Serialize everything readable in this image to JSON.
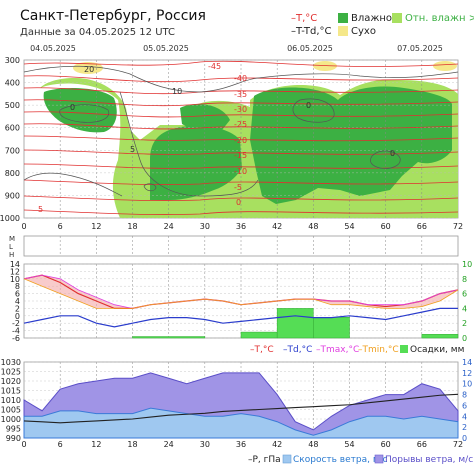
{
  "header": {
    "title": "Санкт-Петербург, Россия",
    "subtitle": "Данные за 04.05.2025 12 UTC"
  },
  "legend_top": {
    "t": "–T,°C",
    "ttd": "–T-Td,°C",
    "vlazhno": "Влажно",
    "otn": "Отн. влажн >70%",
    "sukho": "Сухо"
  },
  "colors": {
    "temperature": "#e03030",
    "dew_point": "#2a3ccc",
    "tmax": "#e040e0",
    "tmin": "#f0a020",
    "humid_dark": "#3cb043",
    "humid_light": "#a8e060",
    "dry": "#f5e88a",
    "precip": "#55dd55",
    "pressure": "#222222",
    "wind": "#9fc8f0",
    "gust": "#a094e6"
  },
  "dates": [
    "04.05.2025",
    "05.05.2025",
    "06.05.2025",
    "07.05.2025"
  ],
  "hour_ticks": [
    "0",
    "6",
    "12",
    "18",
    "24",
    "30",
    "36",
    "42",
    "48",
    "54",
    "60",
    "66",
    "72"
  ],
  "cloud_labels": [
    "M",
    "L",
    "H"
  ],
  "panel_temp": {
    "legend": {
      "t": "–T,°C",
      "td": "–Td,°C",
      "tmax": "–Tmax,°C",
      "tmin": "–Tmin,°C",
      "precip": "Осадки, мм"
    }
  },
  "panel_wind": {
    "legend": {
      "p": "–P, гПа",
      "wind": "Скорость ветра, м/с",
      "gust": "Порывы ветра, м/с"
    }
  },
  "chart_data": [
    {
      "type": "heatmap",
      "ylabel": "",
      "ylim": [
        1000,
        300
      ],
      "y_ticks": [
        300,
        400,
        500,
        600,
        700,
        800,
        900,
        1000
      ],
      "x_ticks": [
        0,
        6,
        12,
        18,
        24,
        30,
        36,
        42,
        48,
        54,
        60,
        66,
        72
      ],
      "temperature_isotherm_labels": [
        "-45",
        "-40",
        "-35",
        "-30",
        "-25",
        "-20",
        "-15",
        "-10",
        "-5",
        "0",
        "5"
      ],
      "dewpoint_deficit_labels": [
        "20",
        "10",
        "0",
        "5"
      ],
      "regions": [
        "Влажно",
        "Отн. влажн >70%",
        "Сухо"
      ]
    },
    {
      "type": "line",
      "x": [
        0,
        3,
        6,
        9,
        12,
        15,
        18,
        21,
        24,
        27,
        30,
        33,
        36,
        39,
        42,
        45,
        48,
        51,
        54,
        57,
        60,
        63,
        66,
        69,
        72
      ],
      "ylim": [
        -6,
        14
      ],
      "y_ticks": [
        "-6",
        "-4",
        "-2",
        "0",
        "2",
        "4",
        "6",
        "8",
        "10",
        "12",
        "14"
      ],
      "y2lim": [
        0,
        10
      ],
      "y2_ticks": [
        "0",
        "2",
        "4",
        "6",
        "8",
        "10"
      ],
      "series": [
        {
          "name": "T,°C",
          "values": [
            10,
            11,
            9,
            6,
            4,
            2,
            2,
            3,
            3.5,
            4,
            4.5,
            4,
            3,
            3.5,
            4,
            4.5,
            4.5,
            4,
            4,
            3,
            2.5,
            3,
            4,
            6,
            7
          ]
        },
        {
          "name": "Td,°C",
          "values": [
            -2,
            -1,
            0,
            0,
            -2,
            -3,
            -2,
            -1,
            -0.5,
            -0.5,
            -1,
            -2,
            -1.5,
            -1,
            -0.5,
            0,
            -0.5,
            -0.5,
            0,
            -0.5,
            -1,
            0,
            1,
            2,
            2
          ]
        },
        {
          "name": "Tmax,°C",
          "values": [
            10,
            11,
            10,
            7,
            5,
            3,
            2,
            3,
            3.5,
            4,
            4.5,
            4,
            3,
            3.5,
            4,
            4.5,
            4.5,
            4,
            4,
            3,
            3,
            3,
            4,
            6,
            7
          ]
        },
        {
          "name": "Tmin,°C",
          "values": [
            10,
            8,
            6,
            4,
            2,
            2,
            2,
            3,
            3.5,
            4,
            4.5,
            4,
            3,
            3.5,
            4,
            4.5,
            4.5,
            3,
            3,
            2.5,
            2,
            2,
            2.5,
            4,
            7
          ]
        }
      ],
      "precip_mm": [
        {
          "x0": 18,
          "x1": 30,
          "value": 0.2
        },
        {
          "x0": 36,
          "x1": 42,
          "value": 0.8
        },
        {
          "x0": 42,
          "x1": 48,
          "value": 4.0
        },
        {
          "x0": 48,
          "x1": 54,
          "value": 2.8
        },
        {
          "x0": 66,
          "x1": 72,
          "value": 0.5
        }
      ]
    },
    {
      "type": "area",
      "x": [
        0,
        3,
        6,
        9,
        12,
        15,
        18,
        21,
        24,
        27,
        30,
        33,
        36,
        39,
        42,
        45,
        48,
        51,
        54,
        57,
        60,
        63,
        66,
        69,
        72
      ],
      "ylim": [
        990,
        1030
      ],
      "y_ticks": [
        "990",
        "995",
        "1000",
        "1005",
        "1010",
        "1015",
        "1020",
        "1025",
        "1030"
      ],
      "y2lim": [
        0,
        14
      ],
      "y2_ticks": [
        "0",
        "2",
        "4",
        "6",
        "8",
        "10",
        "12",
        "14"
      ],
      "series": [
        {
          "name": "P, гПа",
          "values": [
            999,
            998.5,
            998,
            998.5,
            999,
            999.5,
            1000,
            1001,
            1002,
            1002.5,
            1003,
            1004,
            1004.5,
            1005,
            1005.5,
            1006,
            1006.5,
            1007,
            1007.5,
            1008.5,
            1009.5,
            1010.5,
            1011.5,
            1012.5,
            1013
          ]
        },
        {
          "name": "Скорость ветра, м/с",
          "values": [
            4,
            4,
            5,
            5,
            4.5,
            4.5,
            4.5,
            5.5,
            5,
            4.5,
            4,
            4,
            4.5,
            4,
            3,
            1.5,
            0.5,
            1.5,
            3,
            4,
            4,
            3.5,
            4,
            3.5,
            3
          ]
        },
        {
          "name": "Порывы ветра, м/с",
          "values": [
            7,
            5,
            9,
            10,
            10.5,
            11,
            11,
            12,
            11,
            10,
            11,
            12,
            12,
            12,
            8,
            3,
            1.5,
            4,
            6,
            7,
            8,
            8,
            10,
            9,
            5
          ]
        }
      ]
    }
  ]
}
